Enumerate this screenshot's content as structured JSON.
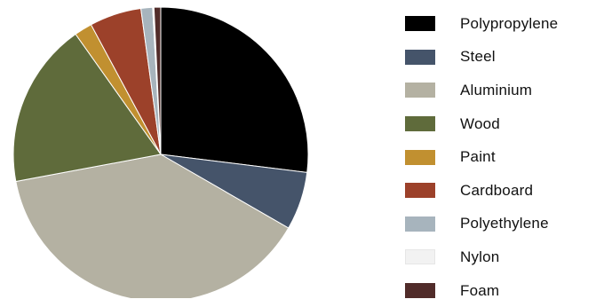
{
  "chart_data": {
    "type": "pie",
    "start_angle_deg": 0,
    "direction": "clockwise",
    "slices": [
      {
        "label": "Polypropylene",
        "value": 27.5,
        "color": "#000000"
      },
      {
        "label": "Steel",
        "value": 6.5,
        "color": "#45546a"
      },
      {
        "label": "Aluminium",
        "value": 39.5,
        "color": "#b4b1a2"
      },
      {
        "label": "Wood",
        "value": 18.5,
        "color": "#5f6b3b"
      },
      {
        "label": "Paint",
        "value": 2.0,
        "color": "#c19030"
      },
      {
        "label": "Cardboard",
        "value": 5.8,
        "color": "#9c412a"
      },
      {
        "label": "Polyethylene",
        "value": 1.3,
        "color": "#a7b4bd"
      },
      {
        "label": "Nylon",
        "value": 0.15,
        "color": "#f2f2f2"
      },
      {
        "label": "Foam",
        "value": 0.75,
        "color": "#512c2a"
      }
    ],
    "legend": {
      "placement": "right"
    }
  }
}
